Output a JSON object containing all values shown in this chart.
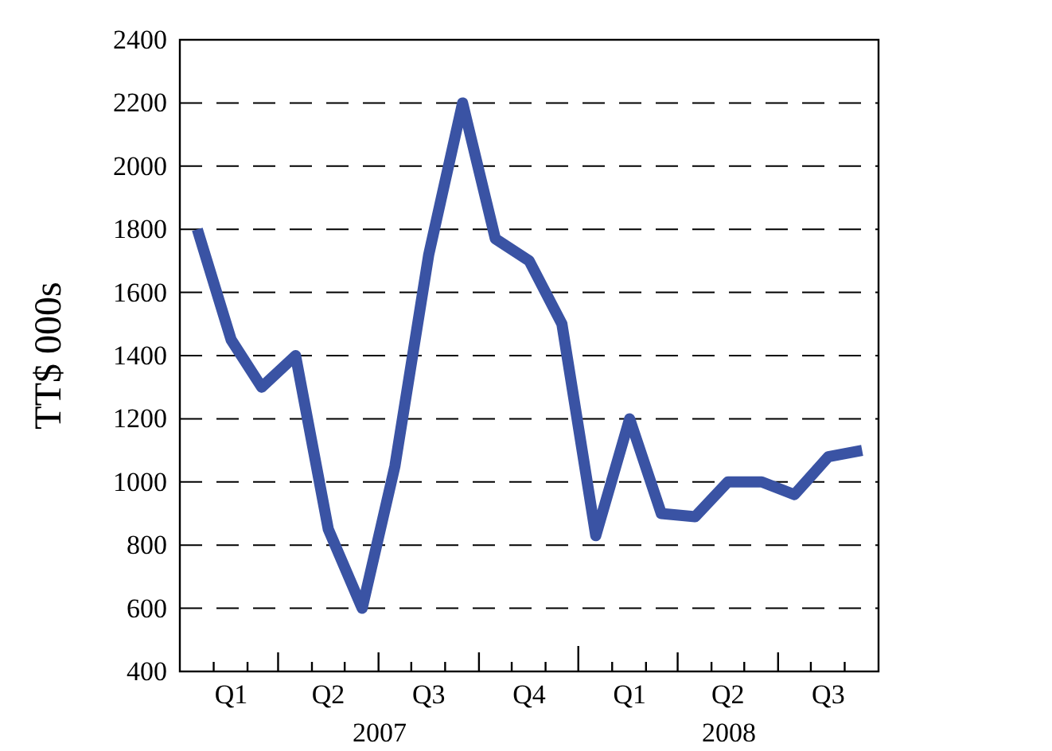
{
  "chart_data": {
    "type": "line",
    "ylabel": "TT$ 000s",
    "x": [
      "2007-01",
      "2007-02",
      "2007-03",
      "2007-04",
      "2007-05",
      "2007-06",
      "2007-07",
      "2007-08",
      "2007-09",
      "2007-10",
      "2007-11",
      "2007-12",
      "2008-01",
      "2008-02",
      "2008-03",
      "2008-04",
      "2008-05",
      "2008-06",
      "2008-07",
      "2008-08",
      "2008-09"
    ],
    "series": [
      {
        "color": "#3a53a4",
        "values": [
          1800,
          1450,
          1300,
          1400,
          850,
          600,
          1050,
          1720,
          2200,
          1770,
          1700,
          1500,
          830,
          1200,
          900,
          890,
          1000,
          1000,
          960,
          1080,
          1100
        ]
      }
    ],
    "xlim": [
      "2006-12-16",
      "2008-09-16"
    ],
    "xticks": [
      {
        "value": "2007-02",
        "label": "Q1"
      },
      {
        "value": "2007-05",
        "label": "Q2"
      },
      {
        "value": "2007-08",
        "label": "Q3"
      },
      {
        "value": "2007-11",
        "label": "Q4"
      },
      {
        "value": "2008-02",
        "label": "Q1"
      },
      {
        "value": "2008-05",
        "label": "Q2"
      },
      {
        "value": "2008-08",
        "label": "Q3"
      },
      {
        "value": "2007-01-16",
        "label": null
      },
      {
        "value": "2007-02-16",
        "label": null
      },
      {
        "value": "2007-03-16",
        "label": null
      },
      {
        "value": "2007-04-16",
        "label": null
      },
      {
        "value": "2007-05-16",
        "label": null
      },
      {
        "value": "2007-06-16",
        "label": null
      },
      {
        "value": "2007-07-16",
        "label": null
      },
      {
        "value": "2007-08-16",
        "label": null
      },
      {
        "value": "2007-09-16",
        "label": null
      },
      {
        "value": "2007-10-16",
        "label": null
      },
      {
        "value": "2007-11-16",
        "label": null
      },
      {
        "value": "2007-12-16",
        "label": null
      },
      {
        "value": "2008-01-16",
        "label": null
      },
      {
        "value": "2008-02-16",
        "label": null
      },
      {
        "value": "2008-03-16",
        "label": null
      },
      {
        "value": "2008-04-16",
        "label": null
      },
      {
        "value": "2008-05-16",
        "label": null
      },
      {
        "value": "2008-06-16",
        "label": null
      },
      {
        "value": "2008-07-16",
        "label": null
      },
      {
        "value": "2008-08-16",
        "label": null
      }
    ],
    "ylim": [
      400,
      2400
    ],
    "yticks": [
      400,
      600,
      800,
      1000,
      1200,
      1400,
      1600,
      1800,
      2000,
      2200,
      2400
    ],
    "grid": "y",
    "line_style": "solid",
    "marker": "none",
    "annotations": [
      "2007",
      "2008"
    ]
  }
}
